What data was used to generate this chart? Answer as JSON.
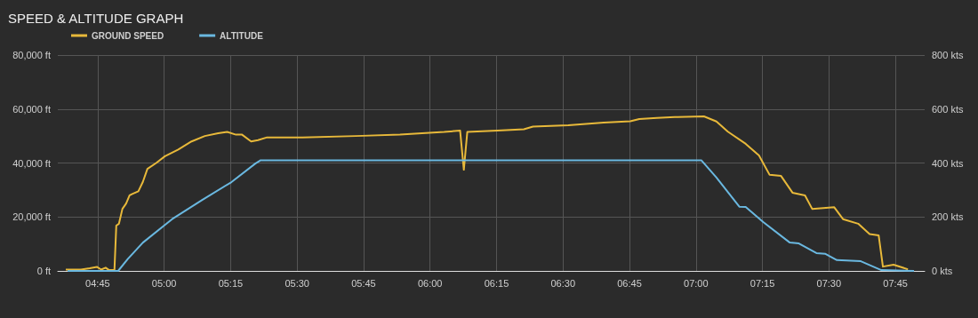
{
  "chart_data": {
    "type": "line",
    "title": "SPEED & ALTITUDE GRAPH",
    "grid": true,
    "legend": "top left",
    "marker": "none",
    "line_style": "solid",
    "xlim": [
      4.6,
      7.86
    ],
    "xticks": [
      {
        "value": 4.75,
        "label": "04:45"
      },
      {
        "value": 5,
        "label": "05:00"
      },
      {
        "value": 5.25,
        "label": "05:15"
      },
      {
        "value": 5.5,
        "label": "05:30"
      },
      {
        "value": 5.75,
        "label": "05:45"
      },
      {
        "value": 6,
        "label": "06:00"
      },
      {
        "value": 6.25,
        "label": "06:15"
      },
      {
        "value": 6.5,
        "label": "06:30"
      },
      {
        "value": 6.75,
        "label": "06:45"
      },
      {
        "value": 7,
        "label": "07:00"
      },
      {
        "value": 7.25,
        "label": "07:15"
      },
      {
        "value": 7.5,
        "label": "07:30"
      },
      {
        "value": 7.75,
        "label": "07:45"
      }
    ],
    "ylim": [
      0,
      80000
    ],
    "yticks": [
      {
        "value": 0,
        "label": "0 ft"
      },
      {
        "value": 20000,
        "label": "20,000 ft"
      },
      {
        "value": 40000,
        "label": "40,000 ft"
      },
      {
        "value": 60000,
        "label": "60,000 ft"
      },
      {
        "value": 80000,
        "label": "80,000 ft"
      }
    ],
    "y2lim": [
      0,
      800
    ],
    "y2ticks": [
      {
        "value": 0,
        "label": "0 kts"
      },
      {
        "value": 200,
        "label": "200 kts"
      },
      {
        "value": 400,
        "label": "400 kts"
      },
      {
        "value": 600,
        "label": "600 kts"
      },
      {
        "value": 800,
        "label": "800 kts"
      }
    ],
    "series": [
      {
        "name": "GROUND SPEED",
        "color": "#e8b93a",
        "axis": "y2",
        "x": [
          4.63,
          4.687,
          4.72,
          4.747,
          4.763,
          4.78,
          4.793,
          4.813,
          4.82,
          4.83,
          4.843,
          4.857,
          4.87,
          4.88,
          4.903,
          4.92,
          4.937,
          4.97,
          5.003,
          5.053,
          5.103,
          5.153,
          5.203,
          5.237,
          5.27,
          5.293,
          5.327,
          5.353,
          5.387,
          5.52,
          5.72,
          5.887,
          6.053,
          6.113,
          6.127,
          6.14,
          6.253,
          6.353,
          6.387,
          6.52,
          6.653,
          6.753,
          6.787,
          6.853,
          6.92,
          7.03,
          7.077,
          7.12,
          7.187,
          7.237,
          7.277,
          7.32,
          7.363,
          7.41,
          7.437,
          7.52,
          7.553,
          7.61,
          7.653,
          7.687,
          7.703,
          7.743,
          7.797
        ],
        "values": [
          5,
          5,
          10,
          15,
          5,
          12,
          3,
          3,
          168,
          175,
          230,
          250,
          280,
          285,
          295,
          330,
          378,
          400,
          425,
          450,
          480,
          500,
          510,
          515,
          505,
          505,
          480,
          485,
          495,
          495,
          500,
          505,
          515,
          520,
          375,
          515,
          520,
          525,
          535,
          540,
          550,
          555,
          563,
          567,
          570,
          573,
          554,
          516,
          471,
          428,
          356,
          352,
          290,
          280,
          230,
          236,
          192,
          175,
          137,
          132,
          16,
          23,
          6
        ]
      },
      {
        "name": "ALTITUDE",
        "color": "#6ab8e0",
        "axis": "y",
        "x": [
          4.637,
          4.827,
          4.863,
          4.92,
          5.03,
          5.143,
          5.253,
          5.343,
          5.363,
          7.02,
          7.077,
          7.163,
          7.187,
          7.253,
          7.353,
          7.387,
          7.453,
          7.487,
          7.53,
          7.62,
          7.697,
          7.82
        ],
        "values": [
          0,
          0,
          4400,
          10500,
          19200,
          26300,
          32900,
          39800,
          41000,
          41000,
          34600,
          23800,
          23700,
          18100,
          10500,
          10200,
          6600,
          6300,
          4000,
          3600,
          300,
          0
        ]
      }
    ]
  }
}
